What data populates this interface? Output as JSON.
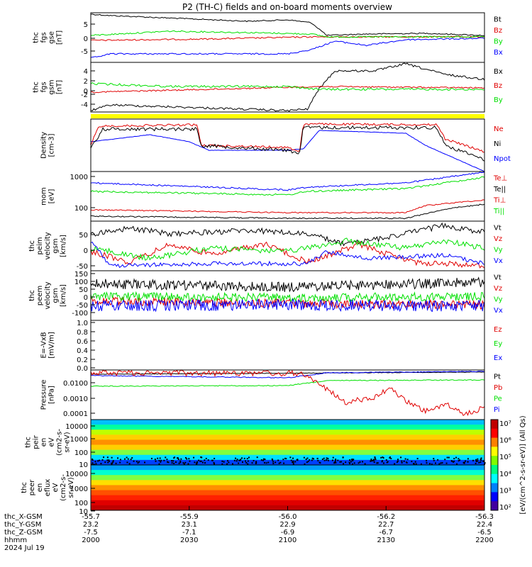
{
  "title": "P2 (TH-C) fields and on-board moments overview",
  "colors": {
    "black": "#000000",
    "red": "#e00000",
    "green": "#00e000",
    "blue": "#0000ff",
    "yellow": "#ffff00"
  },
  "chart_data": {
    "type": "line",
    "x_range_hhmm": [
      "2000",
      "2200"
    ],
    "panels": [
      {
        "id": "fgs-gse",
        "ylabel": [
          "thc",
          "fgs",
          "gse",
          "[nT]"
        ],
        "yticks": [
          "5",
          "0",
          "-5"
        ],
        "legend": [
          {
            "name": "Bt",
            "color": "#000000"
          },
          {
            "name": "Bz",
            "color": "#e00000"
          },
          {
            "name": "By",
            "color": "#00e000"
          },
          {
            "name": "Bx",
            "color": "#0000ff"
          }
        ]
      },
      {
        "id": "fgs-gsm",
        "ylabel": [
          "thc",
          "fgs",
          "gsm",
          "[nT]"
        ],
        "yticks": [
          "4",
          "2",
          "0",
          "-2",
          "-4"
        ],
        "legend": [
          {
            "name": "Bx",
            "color": "#000000"
          },
          {
            "name": "Bz",
            "color": "#e00000"
          },
          {
            "name": "By",
            "color": "#00e000"
          }
        ]
      },
      {
        "id": "density",
        "ylabel": [
          "Density",
          "[cm-3]"
        ],
        "yticks": [],
        "legend": [
          {
            "name": "Ne",
            "color": "#e00000"
          },
          {
            "name": "Ni",
            "color": "#000000"
          },
          {
            "name": "Npot",
            "color": "#0000ff"
          }
        ]
      },
      {
        "id": "temperature",
        "ylabel": [
          "mom",
          "[eV]"
        ],
        "yticks": [
          "1000",
          "100"
        ],
        "legend": [
          {
            "name": "Te⊥",
            "color": "#e00000"
          },
          {
            "name": "Te||",
            "color": "#000000"
          },
          {
            "name": "Ti⊥",
            "color": "#e00000"
          },
          {
            "name": "Ti||",
            "color": "#00e000"
          }
        ]
      },
      {
        "id": "peim-velocity",
        "ylabel": [
          "thc",
          "peim",
          "velocity",
          "gsm",
          "[km/s]"
        ],
        "yticks": [
          "50",
          "0",
          "-50"
        ],
        "legend": [
          {
            "name": "Vt",
            "color": "#000000"
          },
          {
            "name": "Vz",
            "color": "#e00000"
          },
          {
            "name": "Vy",
            "color": "#00e000"
          },
          {
            "name": "Vx",
            "color": "#0000ff"
          }
        ]
      },
      {
        "id": "peem-velocity",
        "ylabel": [
          "thc",
          "peem",
          "velocity",
          "gsm",
          "[km/s]"
        ],
        "yticks": [
          "150",
          "100",
          "50",
          "0",
          "-50",
          "-100"
        ],
        "legend": [
          {
            "name": "Vt",
            "color": "#000000"
          },
          {
            "name": "Vz",
            "color": "#e00000"
          },
          {
            "name": "Vy",
            "color": "#00e000"
          },
          {
            "name": "Vx",
            "color": "#0000ff"
          }
        ]
      },
      {
        "id": "efield",
        "ylabel": [
          "E=-VxB",
          "[mV/m]"
        ],
        "yticks": [
          "1.0",
          "0.8",
          "0.6",
          "0.4",
          "0.2",
          "0.0"
        ],
        "legend": [
          {
            "name": "Ez",
            "color": "#e00000"
          },
          {
            "name": "Ey",
            "color": "#00e000"
          },
          {
            "name": "Ex",
            "color": "#0000ff"
          }
        ]
      },
      {
        "id": "pressure",
        "ylabel": [
          "Pressure",
          "[nPa]"
        ],
        "yticks": [
          "0.0100",
          "0.0010",
          "0.0001"
        ],
        "legend": [
          {
            "name": "Pt",
            "color": "#000000"
          },
          {
            "name": "Pb",
            "color": "#e00000"
          },
          {
            "name": "Pe",
            "color": "#00e000"
          },
          {
            "name": "Pi",
            "color": "#0000ff"
          }
        ]
      },
      {
        "id": "peir-spec",
        "ylabel": [
          "thc",
          "peir",
          "en",
          "eV",
          "(cm2-s-",
          "sr-eV)"
        ],
        "yticks": [
          "10000",
          "1000",
          "100",
          "10"
        ]
      },
      {
        "id": "peer-spec",
        "ylabel": [
          "thc",
          "peer",
          "en",
          "eflux",
          "eV",
          "(cm2-s-",
          "sr-eV)"
        ],
        "yticks": [
          "10000",
          "1000",
          "100",
          "10"
        ]
      }
    ],
    "colorbar": {
      "label": "[eV/(cm^2-s-sr-eV)] (All Qs)",
      "ticks": [
        "10⁷",
        "10⁶",
        "10⁵",
        "10⁴",
        "10³",
        "10²"
      ]
    },
    "xaxis": {
      "rows": [
        {
          "label": "thc_X-GSM",
          "values": [
            "-55.7",
            "-55.9",
            "-56.0",
            "-56.2",
            "-56.3"
          ]
        },
        {
          "label": "thc_Y-GSM",
          "values": [
            "23.2",
            "23.1",
            "22.9",
            "22.7",
            "22.4"
          ]
        },
        {
          "label": "thc_Z-GSM",
          "values": [
            "-7.5",
            "-7.1",
            "-6.9",
            "-6.7",
            "-6.5"
          ]
        },
        {
          "label": "hhmm",
          "values": [
            "2000",
            "2030",
            "2100",
            "2130",
            "2200"
          ]
        }
      ],
      "date": "2024 Jul 19"
    }
  }
}
